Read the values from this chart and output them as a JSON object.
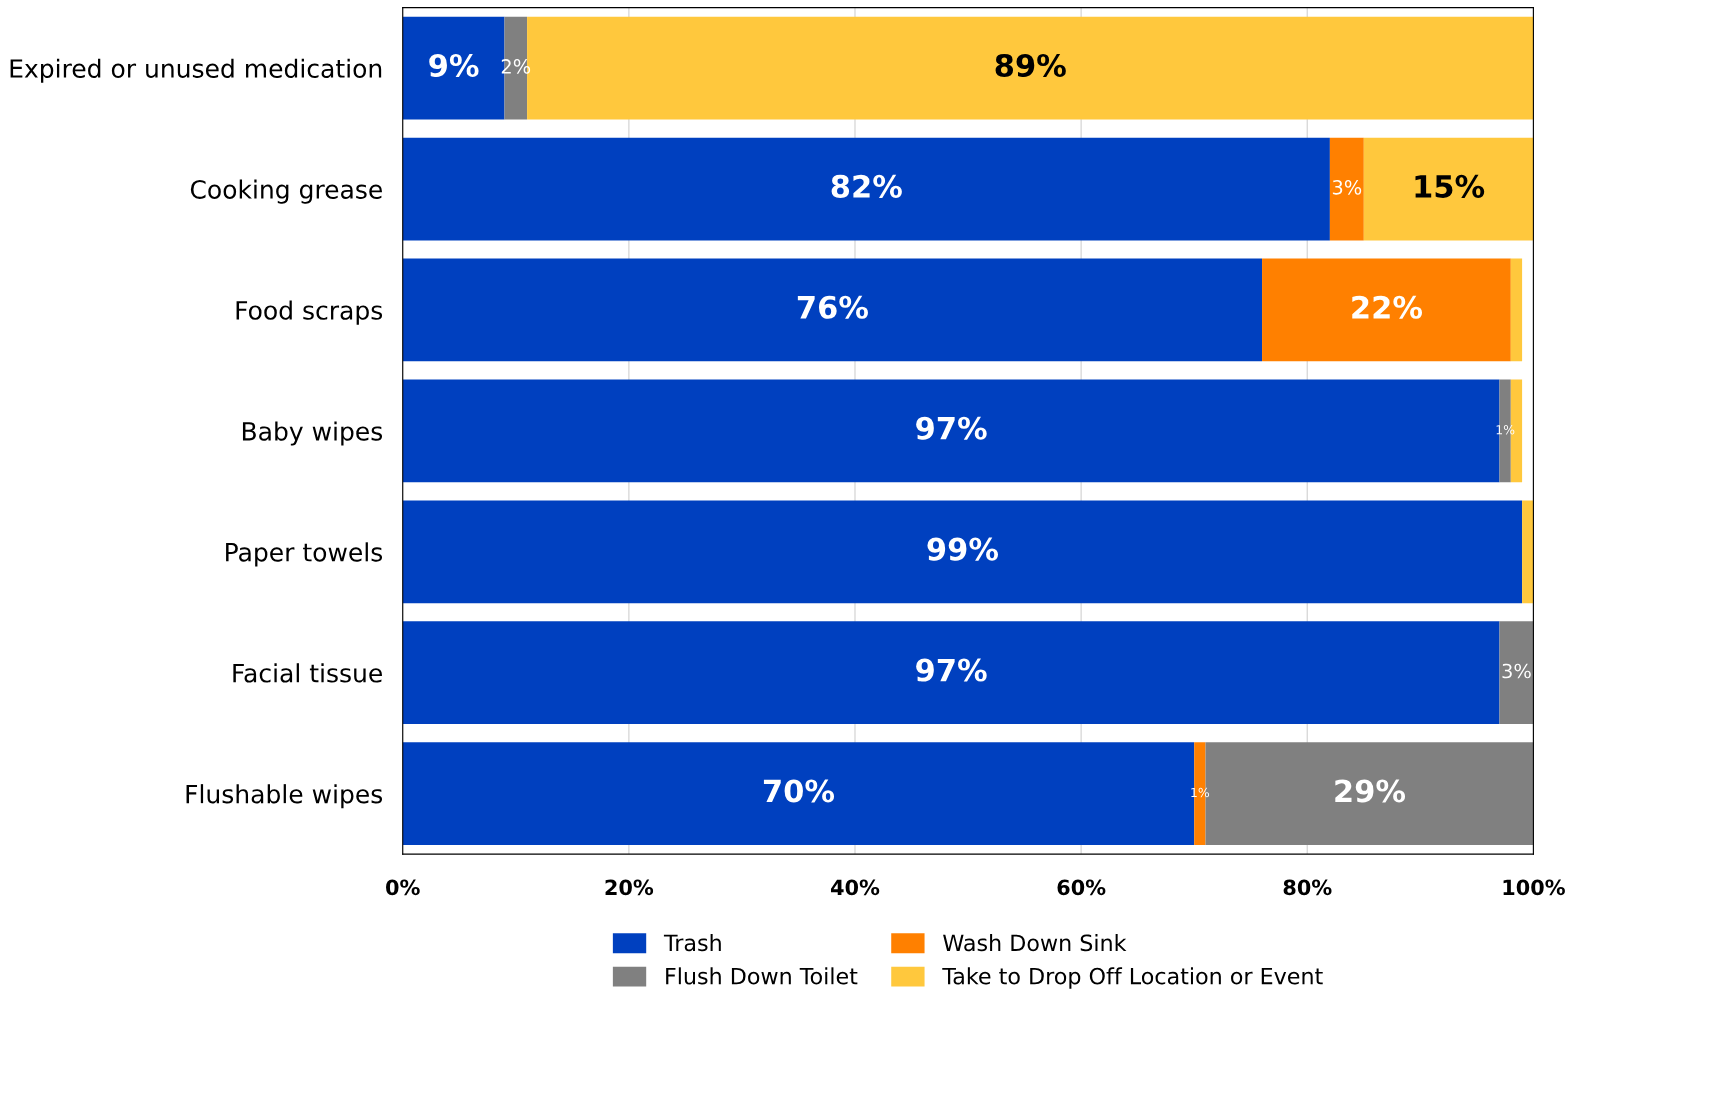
{
  "chart_data": {
    "type": "bar",
    "orientation": "horizontal",
    "stacked": true,
    "categories": [
      "Expired or unused medication",
      "Cooking grease",
      "Food scraps",
      "Baby wipes",
      "Paper towels",
      "Facial tissue",
      "Flushable wipes"
    ],
    "series": [
      {
        "name": "Trash",
        "color": "#0040bf",
        "values": [
          9,
          82,
          76,
          97,
          99,
          97,
          70
        ],
        "value_labels": [
          "9%",
          "82%",
          "76%",
          "97%",
          "99%",
          "97%",
          "70%"
        ]
      },
      {
        "name": "Wash Down Sink",
        "color": "#ff8000",
        "values": [
          0,
          3,
          22,
          0,
          0,
          0,
          1
        ],
        "value_labels": [
          null,
          "3%",
          "22%",
          null,
          null,
          null,
          "1%"
        ]
      },
      {
        "name": "Flush Down Toilet",
        "color": "#808080",
        "values": [
          2,
          0,
          0,
          1,
          0,
          3,
          29
        ],
        "value_labels": [
          "2%",
          null,
          null,
          "1%",
          null,
          "3%",
          "29%"
        ]
      },
      {
        "name": "Take to Drop Off Location or Event",
        "color": "#ffc83d",
        "values": [
          89,
          15,
          1,
          1,
          1,
          0,
          0
        ],
        "value_labels": [
          "89%",
          "15%",
          null,
          null,
          null,
          null,
          null
        ]
      }
    ],
    "xlim": [
      0,
      100
    ],
    "xticks": [
      {
        "value": 0,
        "label": "0%"
      },
      {
        "value": 20,
        "label": "20%"
      },
      {
        "value": 40,
        "label": "40%"
      },
      {
        "value": 60,
        "label": "60%"
      },
      {
        "value": 80,
        "label": "80%"
      },
      {
        "value": 100,
        "label": "100%"
      }
    ],
    "grid": "x",
    "legend": "bottom"
  }
}
